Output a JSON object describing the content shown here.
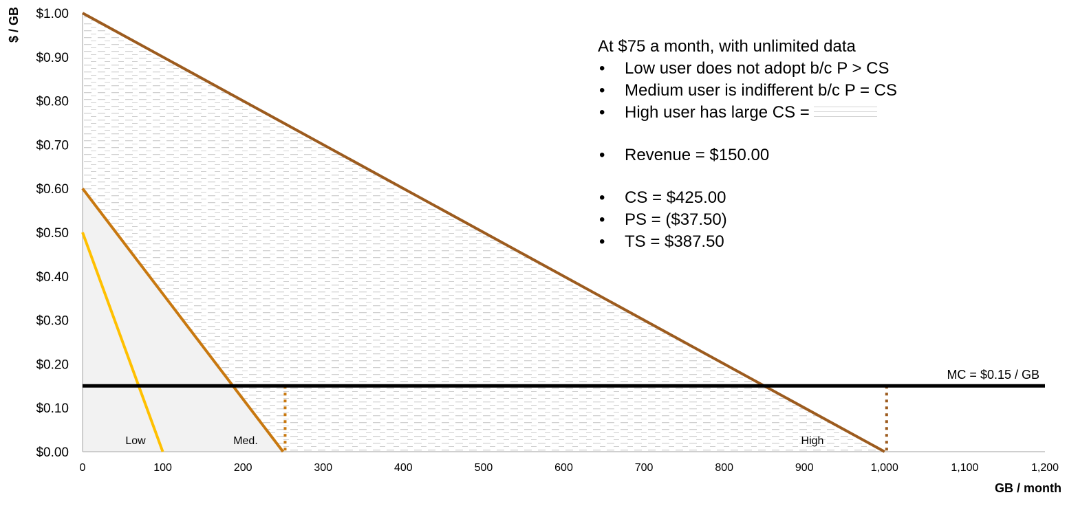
{
  "chart_data": {
    "type": "line",
    "title": "",
    "xlabel": "GB / month",
    "ylabel": "$ / GB",
    "xlim": [
      0,
      1200
    ],
    "ylim": [
      0,
      1.0
    ],
    "x_ticks": [
      "0",
      "100",
      "200",
      "300",
      "400",
      "500",
      "600",
      "700",
      "800",
      "900",
      "1,000",
      "1,100",
      "1,200"
    ],
    "y_ticks": [
      "$0.00",
      "$0.10",
      "$0.20",
      "$0.30",
      "$0.40",
      "$0.50",
      "$0.60",
      "$0.70",
      "$0.80",
      "$0.90",
      "$1.00"
    ],
    "grid": false,
    "series": [
      {
        "name": "Low",
        "color": "#FFC000",
        "points": [
          [
            0,
            0.5
          ],
          [
            100,
            0.0
          ]
        ]
      },
      {
        "name": "Med.",
        "color": "#C8780F",
        "points": [
          [
            0,
            0.6
          ],
          [
            250,
            0.0
          ]
        ]
      },
      {
        "name": "High",
        "color": "#9C5B1E",
        "points": [
          [
            0,
            1.0
          ],
          [
            1000,
            0.0
          ]
        ]
      },
      {
        "name": "MC = $0.15 / GB",
        "color": "#000000",
        "points": [
          [
            0,
            0.15
          ],
          [
            1200,
            0.15
          ]
        ]
      }
    ],
    "reference_lines": [
      {
        "type": "vertical-dotted",
        "x": 250,
        "from": 0,
        "to": 0.15,
        "color": "#C8780F"
      },
      {
        "type": "vertical-dotted",
        "x": 1000,
        "from": 0,
        "to": 0.15,
        "color": "#9C5B1E"
      }
    ],
    "regions": [
      {
        "name": "medium-demand-area",
        "fill": "#F2F2F2"
      },
      {
        "name": "high-user-consumer-surplus",
        "fill": "hatched"
      }
    ],
    "annotations": [
      "Low",
      "Med.",
      "High",
      "MC = $0.15 / GB"
    ]
  },
  "notes": {
    "heading": "At $75 a month, with unlimited data",
    "bullet": "•",
    "items": [
      "Low user does not adopt b/c P > CS",
      "Medium user is indifferent b/c P = CS",
      "High user has large CS ="
    ],
    "revenue": "Revenue = $150.00",
    "surplus": [
      "CS = $425.00",
      "PS = ($37.50)",
      "TS = $387.50"
    ]
  }
}
